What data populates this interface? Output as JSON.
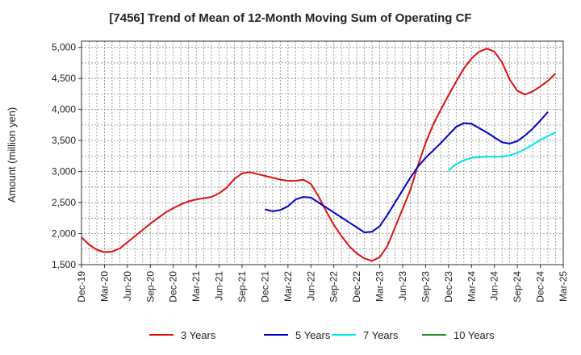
{
  "chart_data": {
    "type": "line",
    "title": "[7456]  Trend of Mean of 12-Month Moving Sum of Operating CF",
    "ylabel": "Amount (million yen)",
    "xlabel": "",
    "ylim": [
      1500,
      5100
    ],
    "yticks": [
      1500,
      2000,
      2500,
      3000,
      3500,
      4000,
      4500,
      5000
    ],
    "ytick_labels": [
      "1,500",
      "2,000",
      "2,500",
      "3,000",
      "3,500",
      "4,000",
      "4,500",
      "5,000"
    ],
    "x_tick_labels": [
      "Dec-19",
      "Mar-20",
      "Jun-20",
      "Sep-20",
      "Dec-20",
      "Mar-21",
      "Jun-21",
      "Sep-21",
      "Dec-21",
      "Mar-22",
      "Jun-22",
      "Sep-22",
      "Dec-22",
      "Mar-23",
      "Jun-23",
      "Sep-23",
      "Dec-23",
      "Mar-24",
      "Jun-24",
      "Sep-24",
      "Dec-24",
      "Mar-25"
    ],
    "x_start": "Dec-19",
    "x_months": 63,
    "grid": true,
    "legend_position": "bottom",
    "series": [
      {
        "name": "3 Years",
        "color": "#dd1111",
        "start_month": 0,
        "values": [
          1940,
          1820,
          1740,
          1700,
          1710,
          1760,
          1860,
          1960,
          2060,
          2160,
          2250,
          2340,
          2410,
          2470,
          2520,
          2550,
          2570,
          2590,
          2650,
          2740,
          2880,
          2970,
          2990,
          2960,
          2930,
          2900,
          2870,
          2850,
          2850,
          2870,
          2800,
          2600,
          2360,
          2140,
          1960,
          1800,
          1680,
          1600,
          1560,
          1620,
          1800,
          2100,
          2400,
          2700,
          3100,
          3460,
          3760,
          4000,
          4230,
          4450,
          4660,
          4820,
          4930,
          4980,
          4930,
          4760,
          4480,
          4300,
          4240,
          4290,
          4370,
          4460,
          4580
        ]
      },
      {
        "name": "5 Years",
        "color": "#0000cc",
        "start_month": 24,
        "values": [
          2390,
          2360,
          2380,
          2440,
          2550,
          2590,
          2580,
          2500,
          2420,
          2340,
          2260,
          2180,
          2100,
          2020,
          2030,
          2120,
          2300,
          2500,
          2700,
          2900,
          3080,
          3220,
          3340,
          3460,
          3590,
          3720,
          3780,
          3770,
          3700,
          3630,
          3550,
          3470,
          3450,
          3490,
          3580,
          3690,
          3820,
          3960
        ]
      },
      {
        "name": "7 Years",
        "color": "#00e5ee",
        "start_month": 48,
        "values": [
          3020,
          3120,
          3180,
          3220,
          3230,
          3240,
          3240,
          3240,
          3260,
          3300,
          3360,
          3430,
          3510,
          3570,
          3630
        ]
      },
      {
        "name": "10 Years",
        "color": "#228b22",
        "start_month": 0,
        "values": []
      }
    ]
  }
}
